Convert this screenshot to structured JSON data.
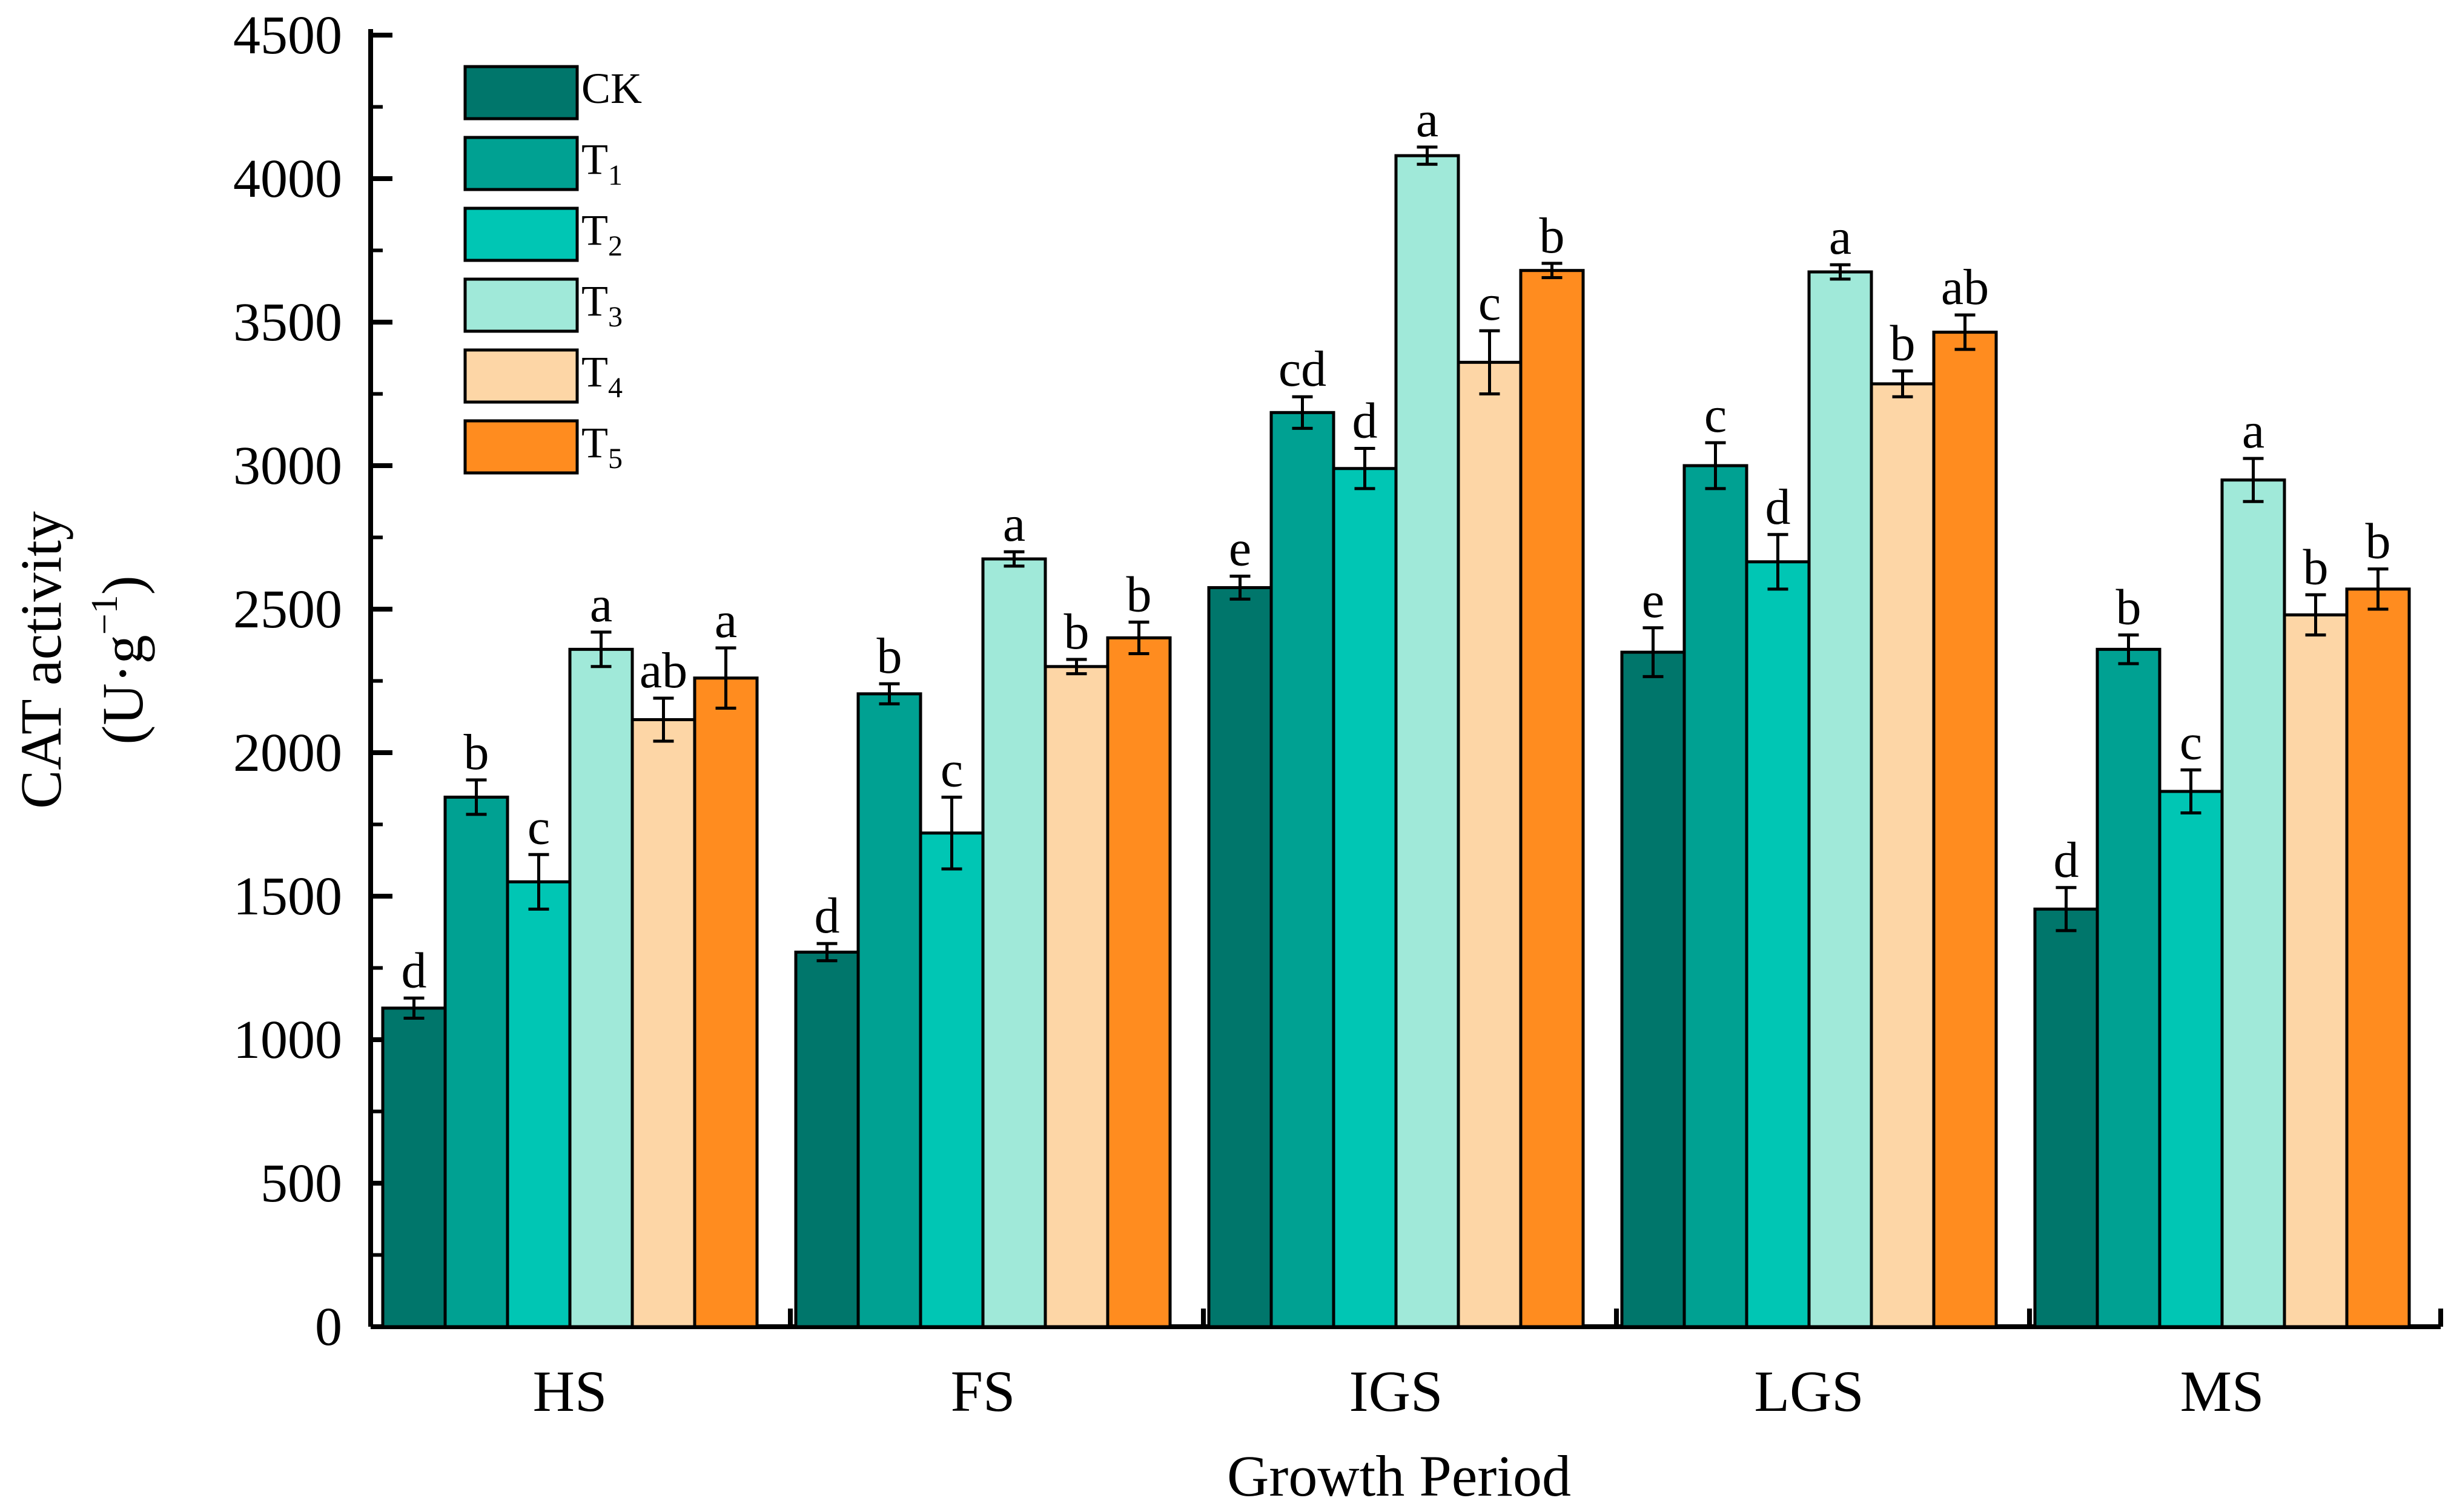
{
  "chart_data": {
    "type": "bar",
    "title": "",
    "xlabel": "Growth Period",
    "ylabel_line1": "CAT activity",
    "ylabel_line2_main": "(U·g",
    "ylabel_line2_sup": "−1",
    "ylabel_line2_end": ")",
    "ylim": [
      0,
      4500
    ],
    "yticks": [
      0,
      500,
      1000,
      1500,
      2000,
      2500,
      3000,
      3500,
      4000,
      4500
    ],
    "categories": [
      "HS",
      "FS",
      "IGS",
      "LGS",
      "MS"
    ],
    "legend_position": "top-left",
    "series": [
      {
        "name": "CK",
        "base": "CK",
        "sub": "",
        "color": "#00766B",
        "values": [
          1110,
          1305,
          2575,
          2350,
          1455
        ],
        "errors": [
          35,
          30,
          40,
          85,
          75
        ],
        "letters": [
          "d",
          "d",
          "e",
          "e",
          "d"
        ]
      },
      {
        "name": "T1",
        "base": "T",
        "sub": "1",
        "color": "#00A192",
        "values": [
          1845,
          2205,
          3185,
          3000,
          2360
        ],
        "errors": [
          60,
          35,
          55,
          80,
          50
        ],
        "letters": [
          "b",
          "b",
          "cd",
          "c",
          "b"
        ]
      },
      {
        "name": "T2",
        "base": "T",
        "sub": "2",
        "color": "#00C6B4",
        "values": [
          1550,
          1720,
          2990,
          2665,
          1865
        ],
        "errors": [
          95,
          125,
          70,
          95,
          75
        ],
        "letters": [
          "c",
          "c",
          "d",
          "d",
          "c"
        ]
      },
      {
        "name": "T3",
        "base": "T",
        "sub": "3",
        "color": "#A0E9D9",
        "values": [
          2360,
          2675,
          4080,
          3675,
          2950
        ],
        "errors": [
          60,
          25,
          30,
          25,
          75
        ],
        "letters": [
          "a",
          "a",
          "a",
          "a",
          "a"
        ]
      },
      {
        "name": "T4",
        "base": "T",
        "sub": "4",
        "color": "#FDD6A6",
        "values": [
          2115,
          2300,
          3360,
          3285,
          2480
        ],
        "errors": [
          75,
          25,
          110,
          45,
          70
        ],
        "letters": [
          "ab",
          "b",
          "c",
          "b",
          "b"
        ]
      },
      {
        "name": "T5",
        "base": "T",
        "sub": "5",
        "color": "#FF8C1F",
        "values": [
          2260,
          2400,
          3680,
          3465,
          2570
        ],
        "errors": [
          105,
          55,
          25,
          60,
          70
        ],
        "letters": [
          "a",
          "b",
          "b",
          "ab",
          "b"
        ]
      }
    ]
  }
}
